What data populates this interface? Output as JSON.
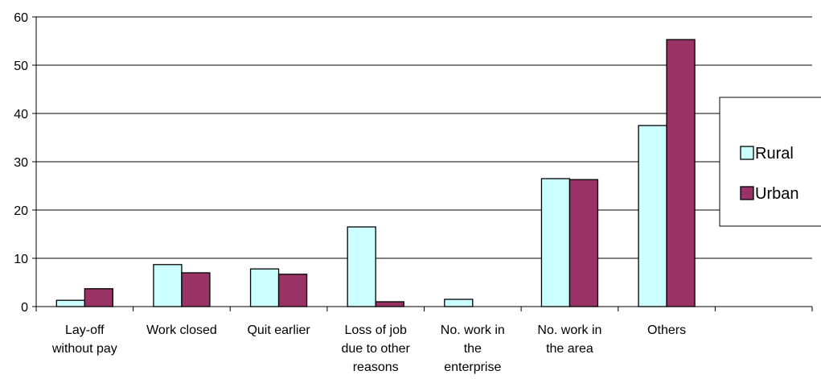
{
  "chart_data": {
    "type": "bar",
    "categories": [
      [
        "Lay-off",
        "without pay"
      ],
      [
        "Work closed"
      ],
      [
        "Quit earlier"
      ],
      [
        "Loss of job",
        "due to other",
        "reasons"
      ],
      [
        "No. work in",
        "the",
        "enterprise"
      ],
      [
        "No. work in",
        "the area"
      ],
      [
        "Others"
      ],
      [
        ""
      ]
    ],
    "series": [
      {
        "name": "Rural",
        "color": "#ccffff",
        "values": [
          1.3,
          8.7,
          7.8,
          16.5,
          1.5,
          26.5,
          37.5,
          0
        ]
      },
      {
        "name": "Urban",
        "color": "#993366",
        "values": [
          3.7,
          7.0,
          6.7,
          1.0,
          0,
          26.3,
          55.3,
          0
        ]
      }
    ],
    "ylim": [
      0,
      60
    ],
    "yticks": [
      0,
      10,
      20,
      30,
      40,
      50,
      60
    ],
    "grid": true,
    "legend": "right"
  }
}
